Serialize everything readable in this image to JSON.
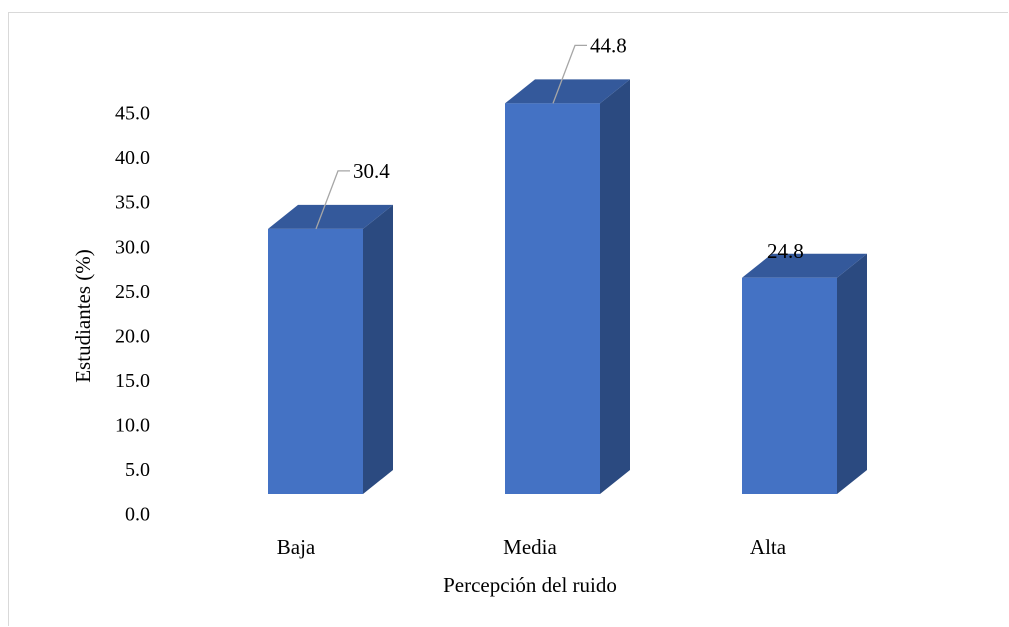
{
  "chart_data": {
    "type": "bar",
    "style": "3d-column",
    "categories": [
      "Baja",
      "Media",
      "Alta"
    ],
    "values": [
      30.4,
      44.8,
      24.8
    ],
    "data_labels": [
      "30.4",
      "44.8",
      "24.8"
    ],
    "xlabel": "Percepción del ruido",
    "ylabel": "Estudiantes (%)",
    "ylim": [
      0,
      45
    ],
    "yticks": [
      "0.0",
      "5.0",
      "10.0",
      "15.0",
      "20.0",
      "25.0",
      "30.0",
      "35.0",
      "40.0",
      "45.0"
    ],
    "grid": false,
    "legend": "none",
    "colors": {
      "front": "#4472c4",
      "top": "#34599b",
      "side": "#2b4a80",
      "leader": "#a6a6a6"
    }
  }
}
